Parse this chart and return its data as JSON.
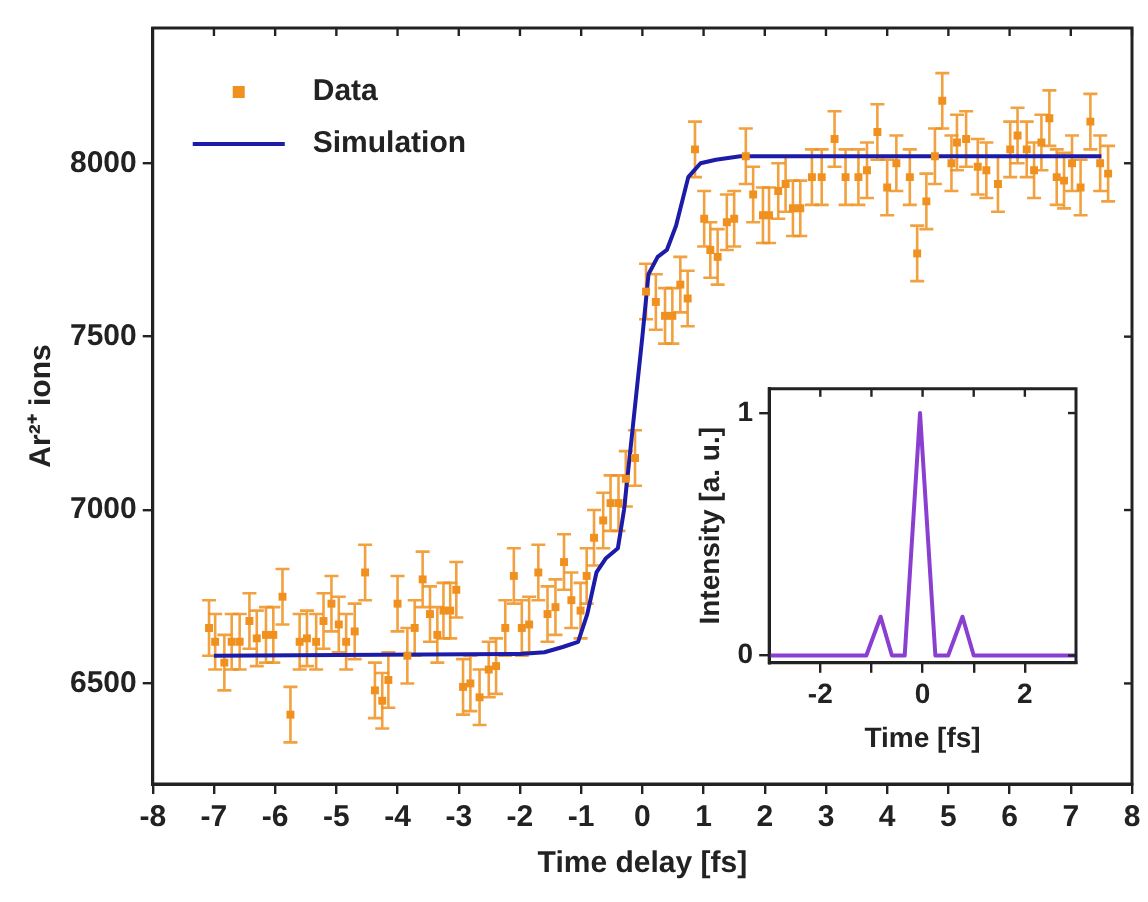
{
  "chart_data": [
    {
      "type": "scatter",
      "xlabel": "Time delay [fs]",
      "ylabel": "Ar²⁺ ions",
      "xlim": [
        -8,
        8
      ],
      "ylim": [
        6210,
        8390
      ],
      "xticks": [
        -8,
        -7,
        -6,
        -5,
        -4,
        -3,
        -2,
        -1,
        0,
        1,
        2,
        3,
        4,
        5,
        6,
        7,
        8
      ],
      "yticks": [
        6500,
        7000,
        7500,
        8000
      ],
      "grid": false,
      "legend": "top left",
      "series": [
        {
          "name": "Data",
          "type": "scatter",
          "marker": "square",
          "color": "#f0901e",
          "x": [
            -7.08,
            -6.98,
            -6.83,
            -6.71,
            -6.58,
            -6.42,
            -6.3,
            -6.15,
            -6.03,
            -5.88,
            -5.75,
            -5.6,
            -5.48,
            -5.33,
            -5.21,
            -5.08,
            -4.96,
            -4.84,
            -4.7,
            -4.53,
            -4.37,
            -4.25,
            -4.15,
            -4.0,
            -3.84,
            -3.72,
            -3.59,
            -3.47,
            -3.35,
            -3.25,
            -3.14,
            -3.04,
            -2.93,
            -2.81,
            -2.66,
            -2.51,
            -2.39,
            -2.24,
            -2.1,
            -1.97,
            -1.85,
            -1.7,
            -1.55,
            -1.42,
            -1.28,
            -1.16,
            -1.01,
            -0.91,
            -0.79,
            -0.64,
            -0.52,
            -0.39,
            -0.27,
            -0.12,
            0.06,
            0.22,
            0.37,
            0.49,
            0.62,
            0.74,
            0.86,
            1.01,
            1.11,
            1.23,
            1.38,
            1.5,
            1.69,
            1.81,
            1.97,
            2.07,
            2.22,
            2.34,
            2.46,
            2.58,
            2.77,
            2.93,
            3.14,
            3.32,
            3.53,
            3.67,
            3.84,
            4.0,
            4.15,
            4.37,
            4.49,
            4.64,
            4.78,
            4.9,
            5.05,
            5.14,
            5.29,
            5.48,
            5.62,
            5.81,
            6.01,
            6.13,
            6.28,
            6.4,
            6.52,
            6.65,
            6.77,
            6.89,
            7.02,
            7.16,
            7.32,
            7.48,
            7.61
          ],
          "values": [
            6660,
            6620,
            6560,
            6620,
            6620,
            6680,
            6630,
            6640,
            6640,
            6750,
            6410,
            6620,
            6630,
            6620,
            6680,
            6730,
            6670,
            6620,
            6650,
            6820,
            6480,
            6450,
            6510,
            6730,
            6580,
            6660,
            6800,
            6700,
            6640,
            6710,
            6710,
            6770,
            6490,
            6500,
            6460,
            6540,
            6550,
            6660,
            6810,
            6660,
            6670,
            6820,
            6700,
            6720,
            6850,
            6740,
            6710,
            6810,
            6920,
            6970,
            7020,
            7020,
            7090,
            7150,
            7630,
            7600,
            7560,
            7560,
            7650,
            7610,
            8040,
            7840,
            7750,
            7730,
            7830,
            7840,
            8020,
            7910,
            7850,
            7850,
            7920,
            7940,
            7870,
            7870,
            7960,
            7960,
            8070,
            7960,
            7960,
            7980,
            8090,
            7930,
            8000,
            7960,
            7740,
            7890,
            8020,
            8180,
            8000,
            8060,
            8070,
            7990,
            7980,
            7940,
            8040,
            8080,
            8040,
            7980,
            8060,
            8130,
            7960,
            7950,
            8000,
            7930,
            8120,
            8000,
            7970
          ],
          "errors": [
            80,
            80,
            80,
            80,
            80,
            80,
            80,
            80,
            80,
            80,
            80,
            80,
            80,
            80,
            80,
            80,
            80,
            80,
            80,
            80,
            80,
            80,
            80,
            80,
            80,
            80,
            80,
            80,
            80,
            80,
            80,
            80,
            80,
            80,
            80,
            80,
            80,
            80,
            80,
            80,
            80,
            80,
            80,
            80,
            80,
            80,
            80,
            80,
            80,
            80,
            80,
            80,
            80,
            80,
            80,
            80,
            80,
            80,
            80,
            80,
            80,
            80,
            80,
            80,
            80,
            80,
            80,
            80,
            80,
            80,
            80,
            80,
            80,
            80,
            80,
            80,
            80,
            80,
            80,
            80,
            80,
            80,
            80,
            80,
            80,
            80,
            80,
            80,
            80,
            80,
            80,
            80,
            80,
            80,
            80,
            80,
            80,
            80,
            80,
            80,
            80,
            80,
            80,
            80,
            80,
            80,
            80
          ]
        },
        {
          "name": "Simulation",
          "type": "line",
          "marker": "none",
          "line_style": "solid",
          "color": "#1c1ca8",
          "x": [
            -7,
            -2,
            -1.6,
            -1.3,
            -1.05,
            -0.9,
            -0.75,
            -0.6,
            -0.4,
            -0.3,
            -0.15,
            0,
            0.1,
            0.25,
            0.4,
            0.55,
            0.75,
            0.95,
            1.2,
            1.6,
            7.5
          ],
          "values": [
            6580,
            6585,
            6590,
            6605,
            6620,
            6700,
            6820,
            6860,
            6890,
            7000,
            7250,
            7500,
            7680,
            7730,
            7750,
            7820,
            7960,
            8000,
            8010,
            8020,
            8020
          ]
        }
      ]
    },
    {
      "type": "line",
      "xlabel": "Time [fs]",
      "ylabel": "Intensity [a. u.]",
      "xlim": [
        -3,
        3
      ],
      "ylim": [
        -0.03,
        1.1
      ],
      "xticks": [
        -2,
        {
          "value": -1,
          "label": null
        },
        0,
        {
          "value": 1,
          "label": null
        },
        2
      ],
      "yticks": [
        0,
        1
      ],
      "grid": false,
      "series": [
        {
          "color": "#8a3fd0",
          "marker": "none",
          "line_style": "solid",
          "x": [
            -3,
            -1.1,
            -0.82,
            -0.6,
            -0.35,
            -0.05,
            0.25,
            0.5,
            0.78,
            1.0,
            3
          ],
          "values": [
            0,
            0,
            0.16,
            0,
            0,
            1,
            0,
            0,
            0.16,
            0,
            0
          ]
        }
      ]
    }
  ]
}
